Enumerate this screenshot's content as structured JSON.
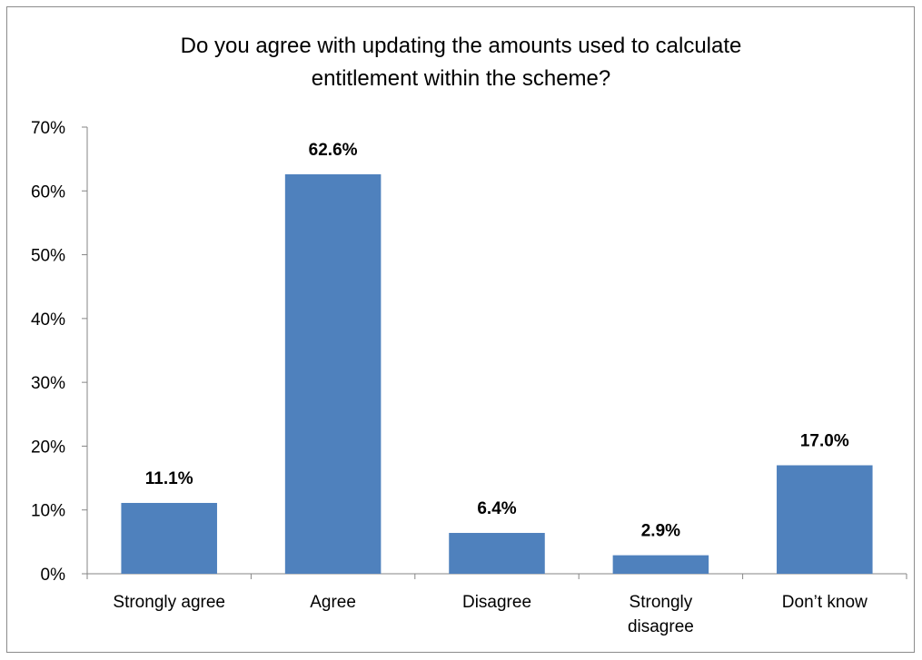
{
  "chart_data": {
    "type": "bar",
    "title_lines": [
      "Do you agree with updating the amounts used to calculate",
      "entitlement within the scheme?"
    ],
    "categories": [
      [
        "Strongly agree"
      ],
      [
        "Agree"
      ],
      [
        "Disagree"
      ],
      [
        "Strongly",
        "disagree"
      ],
      [
        "Don’t know"
      ]
    ],
    "values": [
      11.1,
      62.6,
      6.4,
      2.9,
      17.0
    ],
    "data_labels": [
      "11.1%",
      "62.6%",
      "6.4%",
      "2.9%",
      "17.0%"
    ],
    "y_ticks": [
      0,
      10,
      20,
      30,
      40,
      50,
      60,
      70
    ],
    "y_tick_labels": [
      "0%",
      "10%",
      "20%",
      "30%",
      "40%",
      "50%",
      "60%",
      "70%"
    ],
    "ylim": [
      0,
      70
    ],
    "bar_color": "#4f81bd",
    "grid": false,
    "legend": false
  }
}
